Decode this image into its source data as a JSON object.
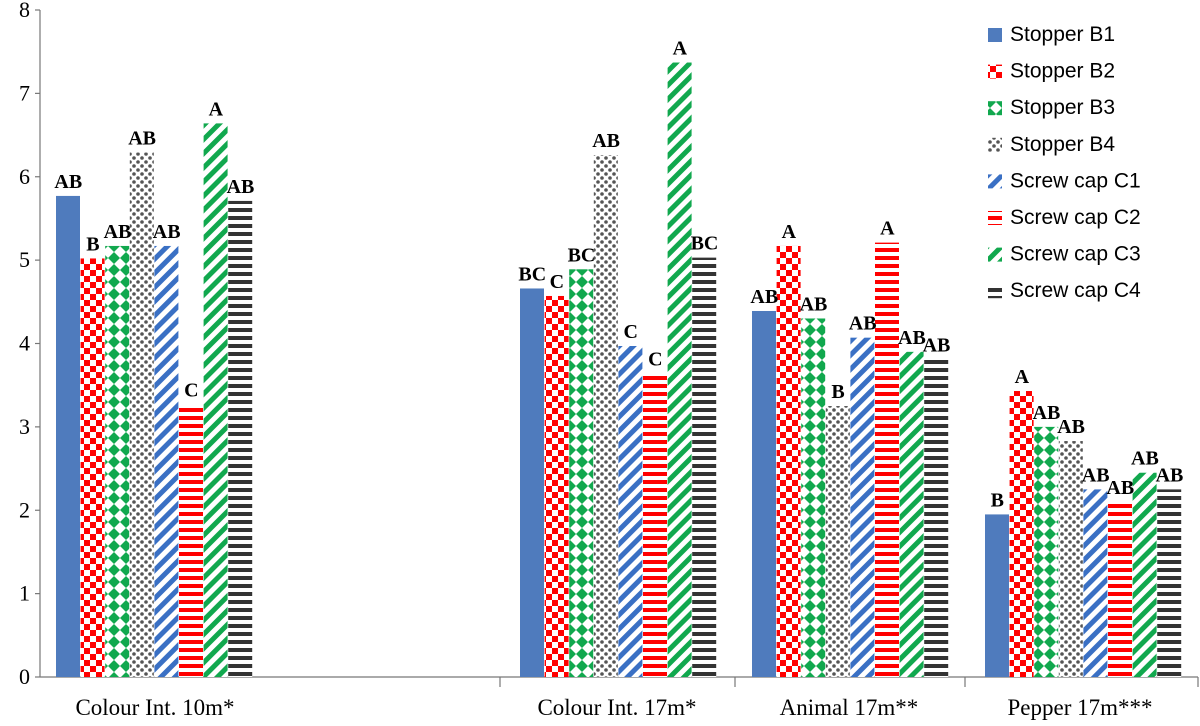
{
  "chart_data": {
    "type": "bar",
    "title": "",
    "xlabel": "",
    "ylabel": "",
    "ylim": [
      0,
      8
    ],
    "yticks": [
      0,
      1,
      2,
      3,
      4,
      5,
      6,
      7,
      8
    ],
    "grid": false,
    "legend_position": "top-right",
    "categories": [
      "Colour Int. 10m*",
      "Colour Int. 17m*",
      "Animal 17m**",
      "Pepper 17m***"
    ],
    "series": [
      {
        "name": "Stopper B1",
        "color": "#4f7bbd",
        "pattern": "solid",
        "values": [
          5.77,
          4.66,
          4.39,
          1.95
        ],
        "labels": [
          "AB",
          "BC",
          "AB",
          "B"
        ]
      },
      {
        "name": "Stopper B2",
        "color": "#ff0000",
        "pattern": "checker",
        "values": [
          5.02,
          4.57,
          5.17,
          3.43
        ],
        "labels": [
          "B",
          "C",
          "A",
          "A"
        ]
      },
      {
        "name": "Stopper B3",
        "color": "#11a84e",
        "pattern": "diamond",
        "values": [
          5.17,
          4.89,
          4.3,
          3.0
        ],
        "labels": [
          "AB",
          "BC",
          "AB",
          "AB"
        ]
      },
      {
        "name": "Stopper B4",
        "color": "#555555",
        "pattern": "dots",
        "values": [
          6.29,
          6.26,
          3.25,
          2.83
        ],
        "labels": [
          "AB",
          "AB",
          "B",
          "AB"
        ]
      },
      {
        "name": "Screw cap C1",
        "color": "#3a70c4",
        "pattern": "diag",
        "values": [
          5.17,
          3.97,
          4.07,
          2.25
        ],
        "labels": [
          "AB",
          "C",
          "AB",
          "AB"
        ]
      },
      {
        "name": "Screw cap C2",
        "color": "#ff0000",
        "pattern": "hstripe",
        "values": [
          3.27,
          3.64,
          5.21,
          2.1
        ],
        "labels": [
          "C",
          "C",
          "A",
          "AB"
        ]
      },
      {
        "name": "Screw cap C3",
        "color": "#11a84e",
        "pattern": "diag",
        "values": [
          6.64,
          7.37,
          3.9,
          2.45
        ],
        "labels": [
          "A",
          "A",
          "AB",
          "AB"
        ]
      },
      {
        "name": "Screw cap C4",
        "color": "#333333",
        "pattern": "hstripe",
        "values": [
          5.71,
          5.03,
          3.81,
          2.25
        ],
        "labels": [
          "AB",
          "BC",
          "AB",
          "AB"
        ]
      }
    ]
  }
}
